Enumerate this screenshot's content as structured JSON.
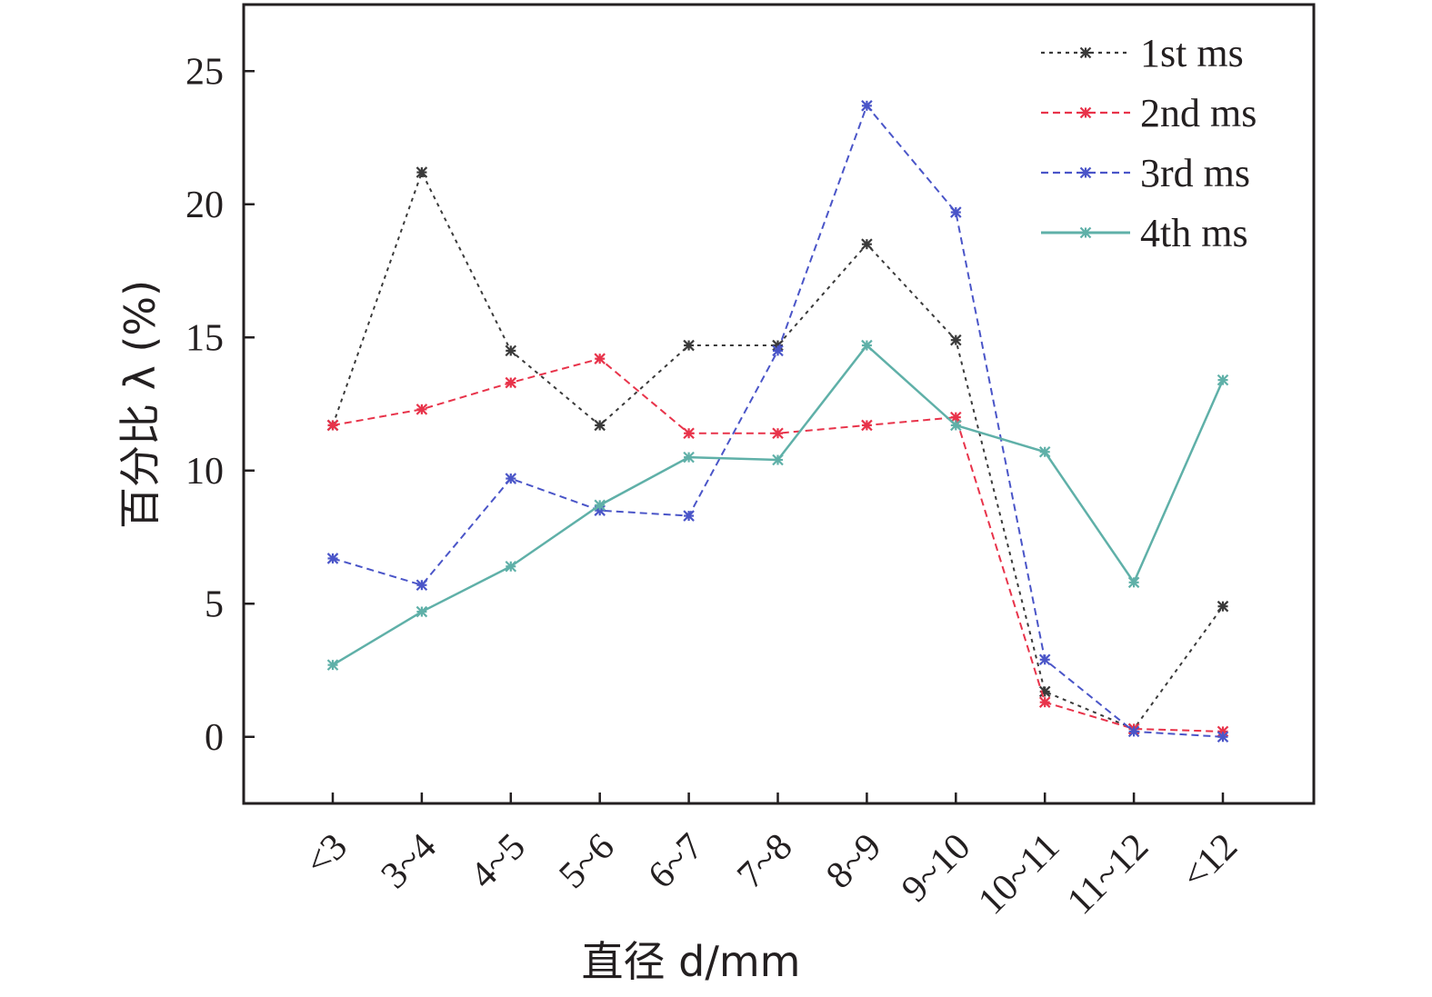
{
  "chart_data": {
    "type": "line",
    "categories": [
      "<3",
      "3~4",
      "4~5",
      "5~6",
      "6~7",
      "7~8",
      "8~9",
      "9~10",
      "10~11",
      "11~12",
      "<12"
    ],
    "xlabel": "直径 d/mm",
    "ylabel": "百分比 λ (%)",
    "ylim": [
      -2.5,
      27.5
    ],
    "yticks": [
      0,
      5,
      10,
      15,
      20,
      25
    ],
    "legend_position": "top-right",
    "grid": false,
    "series": [
      {
        "name": "1st ms",
        "color": "#3a3a3a",
        "style": "dotted",
        "values": [
          11.7,
          21.2,
          14.5,
          11.7,
          14.7,
          14.7,
          18.5,
          14.9,
          1.7,
          0.3,
          4.9
        ]
      },
      {
        "name": "2nd ms",
        "color": "#e8334a",
        "style": "dashed",
        "values": [
          11.7,
          12.3,
          13.3,
          14.2,
          11.4,
          11.4,
          11.7,
          12.0,
          1.3,
          0.3,
          0.2
        ]
      },
      {
        "name": "3rd ms",
        "color": "#4a55c8",
        "style": "dashed",
        "values": [
          6.7,
          5.7,
          9.7,
          8.5,
          8.3,
          14.5,
          23.7,
          19.7,
          2.9,
          0.2,
          0.0
        ]
      },
      {
        "name": "4th ms",
        "color": "#5fb0a8",
        "style": "solid",
        "values": [
          2.7,
          4.7,
          6.4,
          8.7,
          10.5,
          10.4,
          14.7,
          11.7,
          10.7,
          5.8,
          13.4
        ]
      }
    ]
  }
}
